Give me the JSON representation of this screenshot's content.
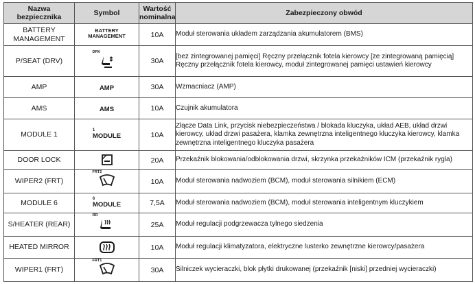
{
  "headers": {
    "name_line1": "Nazwa",
    "name_line2": "bezpiecznika",
    "symbol": "Symbol",
    "value_line1": "Wartość",
    "value_line2": "nominalna",
    "circuit": "Zabezpieczony obwód"
  },
  "rows": [
    {
      "name": "BATTERY MANAGEMENT",
      "symbol_line1": "BATTERY",
      "symbol_line2": "MANAGEMENT",
      "value": "10A",
      "circuit": "Moduł sterowania układem zarządzania akumulatorem (BMS)"
    },
    {
      "name": "P/SEAT (DRV)",
      "symbol_tag": "DRV",
      "symbol_icon": "power-seat-icon",
      "value": "30A",
      "circuit": "[bez zintegrowanej pamięci] Ręczny przełącznik fotela kierowcy [ze zintegrowaną pamięcią] Ręczny przełącznik fotela kierowcy, moduł zintegrowanej pamięci ustawień kierowcy"
    },
    {
      "name": "AMP",
      "symbol_text": "AMP",
      "value": "30A",
      "circuit": "Wzmacniacz (AMP)"
    },
    {
      "name": "AMS",
      "symbol_text": "AMS",
      "value": "10A",
      "circuit": "Czujnik akumulatora"
    },
    {
      "name": "MODULE 1",
      "symbol_sup": "1",
      "symbol_text": "MODULE",
      "value": "10A",
      "circuit": "Złącze Data Link, przycisk niebezpieczeństwa / blokada kluczyka, układ AEB, układ drzwi kierowcy, układ drzwi pasażera, klamka zewnętrzna inteligentnego kluczyka kierowcy, klamka zewnętrzna inteligentnego kluczyka pasażera"
    },
    {
      "name": "DOOR LOCK",
      "symbol_icon": "door-lock-icon",
      "value": "20A",
      "circuit": "Przekaźnik blokowania/odblokowania drzwi, skrzynka przekaźników ICM (przekaźnik rygla)"
    },
    {
      "name": "WIPER2 (FRT)",
      "symbol_tag": "FRT2",
      "symbol_icon": "wiper-icon",
      "value": "10A",
      "circuit": "Moduł sterowania nadwoziem (BCM), moduł sterowania silnikiem (ECM)"
    },
    {
      "name": "MODULE 6",
      "symbol_sup": "6",
      "symbol_text": "MODULE",
      "value": "7,5A",
      "circuit": "Moduł sterowania nadwoziem (BCM), moduł sterowania inteligentnym kluczykiem"
    },
    {
      "name": "S/HEATER (REAR)",
      "symbol_tag": "RR",
      "symbol_icon": "seat-heater-icon",
      "value": "25A",
      "circuit": "Moduł regulacji podgrzewacza tylnego siedzenia"
    },
    {
      "name": "HEATED MIRROR",
      "symbol_icon": "heated-mirror-icon",
      "value": "10A",
      "circuit": "Moduł regulacji klimatyzatora, elektryczne lusterko zewnętrzne kierowcy/pasażera"
    },
    {
      "name": "WIPER1 (FRT)",
      "symbol_tag": "FRT1",
      "symbol_icon": "wiper-icon",
      "value": "30A",
      "circuit": "Silniczek wycieraczki, blok płytki drukowanej (przekaźnik [niski] przedniej wycieraczki)"
    }
  ]
}
